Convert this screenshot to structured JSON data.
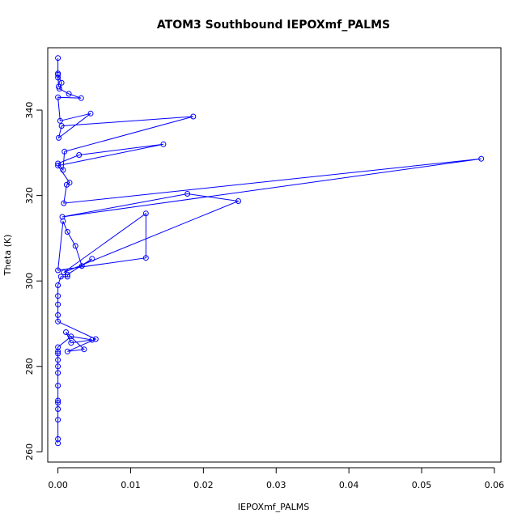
{
  "chart_data": {
    "type": "line",
    "title": "ATOM3 Southbound IEPOXmf_PALMS",
    "xlabel": "IEPOXmf_PALMS",
    "ylabel": "Theta (K)",
    "xlim": [
      -0.0014,
      0.0609
    ],
    "ylim": [
      257.6,
      354.6
    ],
    "x_ticks": [
      0,
      0.01,
      0.02,
      0.03,
      0.04,
      0.05,
      0.06
    ],
    "x_tick_labels": [
      "0.00",
      "0.01",
      "0.02",
      "0.03",
      "0.04",
      "0.05",
      "0.06"
    ],
    "y_ticks": [
      260,
      280,
      300,
      320,
      340
    ],
    "y_tick_labels": [
      "260",
      "280",
      "300",
      "320",
      "340"
    ],
    "grid": false,
    "legend": "none",
    "series": [
      {
        "color": "#0000ff",
        "marker": "open-circle",
        "x": [
          0,
          0,
          0,
          0,
          0,
          0,
          0,
          0,
          0,
          0,
          0,
          0,
          0,
          0.0018,
          0.0047,
          0.0018,
          0.0011,
          0.0036,
          0.0013,
          0.0052,
          0,
          0,
          0,
          0,
          0,
          0.0004,
          0.0013,
          0.0013,
          0.0047,
          0.0033,
          0.0024,
          0.0013,
          0.0007,
          0,
          0.0121,
          0.0121,
          0.0008,
          0.0248,
          0.0178,
          0.0006,
          0.0582,
          0.0008,
          0.0012,
          0.0016,
          0,
          0.0145,
          0.0029,
          0,
          0.0007,
          0.0009,
          0.0186,
          0.0005,
          0.0001,
          0.0045,
          0.0003,
          0,
          0.0032,
          0.0015,
          0.0002,
          0.0005,
          0,
          0,
          0.0001,
          0,
          0
        ],
        "y": [
          262,
          263,
          267.5,
          270,
          271.5,
          272,
          275.5,
          278.5,
          280,
          281.5,
          283,
          283.5,
          284.5,
          287,
          286.2,
          285.5,
          288,
          284,
          283.5,
          286.4,
          290.5,
          292,
          294.5,
          296.5,
          299,
          301,
          301,
          301.5,
          305.2,
          303.5,
          308.2,
          311.5,
          314,
          302.5,
          305.4,
          315.8,
          302,
          318.7,
          320.4,
          315,
          328.6,
          318.2,
          322.5,
          323,
          327,
          332,
          329.5,
          327.5,
          326,
          330.3,
          338.5,
          336.3,
          333.5,
          339.2,
          337.5,
          343,
          342.8,
          343.8,
          345,
          346.4,
          348.3,
          348.6,
          345.5,
          347.6,
          352.2
        ]
      }
    ]
  }
}
